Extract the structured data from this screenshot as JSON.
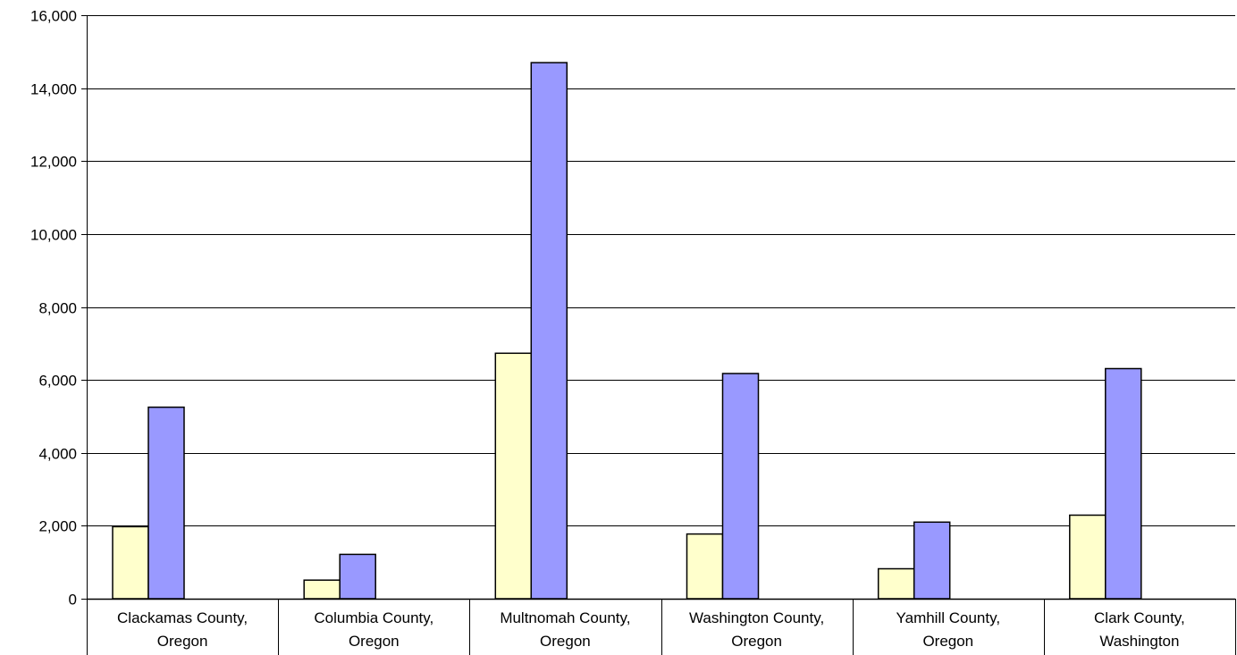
{
  "chart_data": {
    "type": "bar",
    "title": "",
    "xlabel": "",
    "ylabel": "",
    "ylim": [
      0,
      16000
    ],
    "y_ticks": [
      0,
      2000,
      4000,
      6000,
      8000,
      10000,
      12000,
      14000,
      16000
    ],
    "y_tick_labels": [
      "0",
      "2,000",
      "4,000",
      "6,000",
      "8,000",
      "10,000",
      "12,000",
      "14,000",
      "16,000"
    ],
    "grid": "horizontal",
    "legend": "none",
    "categories": [
      {
        "line1": "Clackamas County,",
        "line2": "Oregon"
      },
      {
        "line1": "Columbia County,",
        "line2": "Oregon"
      },
      {
        "line1": "Multnomah County,",
        "line2": "Oregon"
      },
      {
        "line1": "Washington County,",
        "line2": "Oregon"
      },
      {
        "line1": "Yamhill County,",
        "line2": "Oregon"
      },
      {
        "line1": "Clark County,",
        "line2": "Washington"
      }
    ],
    "series": [
      {
        "color": "#ffffcc",
        "values": [
          1975,
          510,
          6730,
          1775,
          820,
          2290
        ]
      },
      {
        "color": "#9999ff",
        "values": [
          5250,
          1215,
          14700,
          6175,
          2100,
          6310
        ]
      }
    ]
  }
}
